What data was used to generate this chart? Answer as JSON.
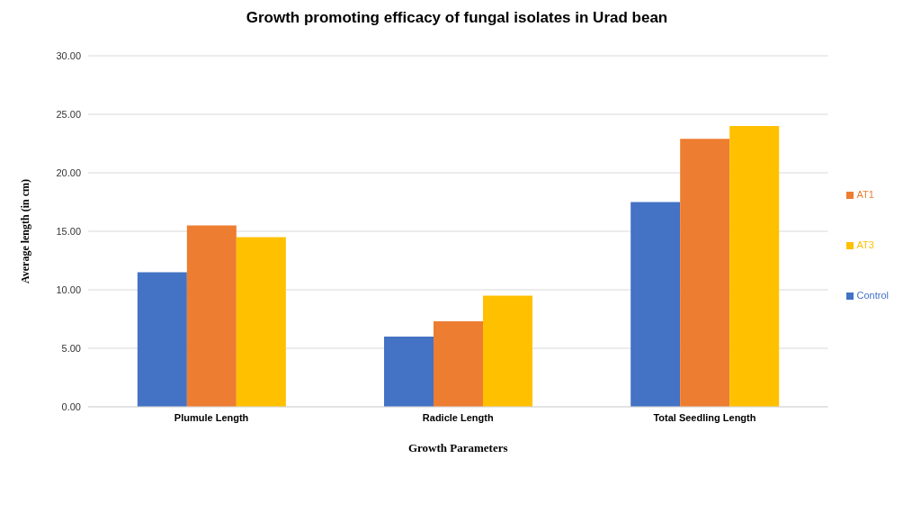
{
  "chart_data": {
    "type": "bar",
    "title": "Growth promoting efficacy of fungal isolates in Urad bean",
    "xlabel": "Growth  Parameters",
    "ylabel": "Average length (in cm)",
    "categories": [
      "Plumule Length",
      "Radicle Length",
      "Total Seedling Length"
    ],
    "series": [
      {
        "name": "Control",
        "color": "#4472c4",
        "values": [
          11.5,
          6.0,
          17.5
        ]
      },
      {
        "name": "AT1",
        "color": "#ed7d31",
        "values": [
          15.5,
          7.3,
          22.9
        ]
      },
      {
        "name": "AT3",
        "color": "#ffc000",
        "values": [
          14.5,
          9.5,
          24.0
        ]
      }
    ],
    "ylim": [
      0,
      30
    ],
    "yticks": [
      {
        "value": 0,
        "label": "0.00"
      },
      {
        "value": 5,
        "label": "5.00"
      },
      {
        "value": 10,
        "label": "10.00"
      },
      {
        "value": 15,
        "label": "15.00"
      },
      {
        "value": 20,
        "label": "20.00"
      },
      {
        "value": 25,
        "label": "25.00"
      },
      {
        "value": 30,
        "label": "30.00"
      }
    ],
    "grid": "y",
    "legend": "right"
  }
}
